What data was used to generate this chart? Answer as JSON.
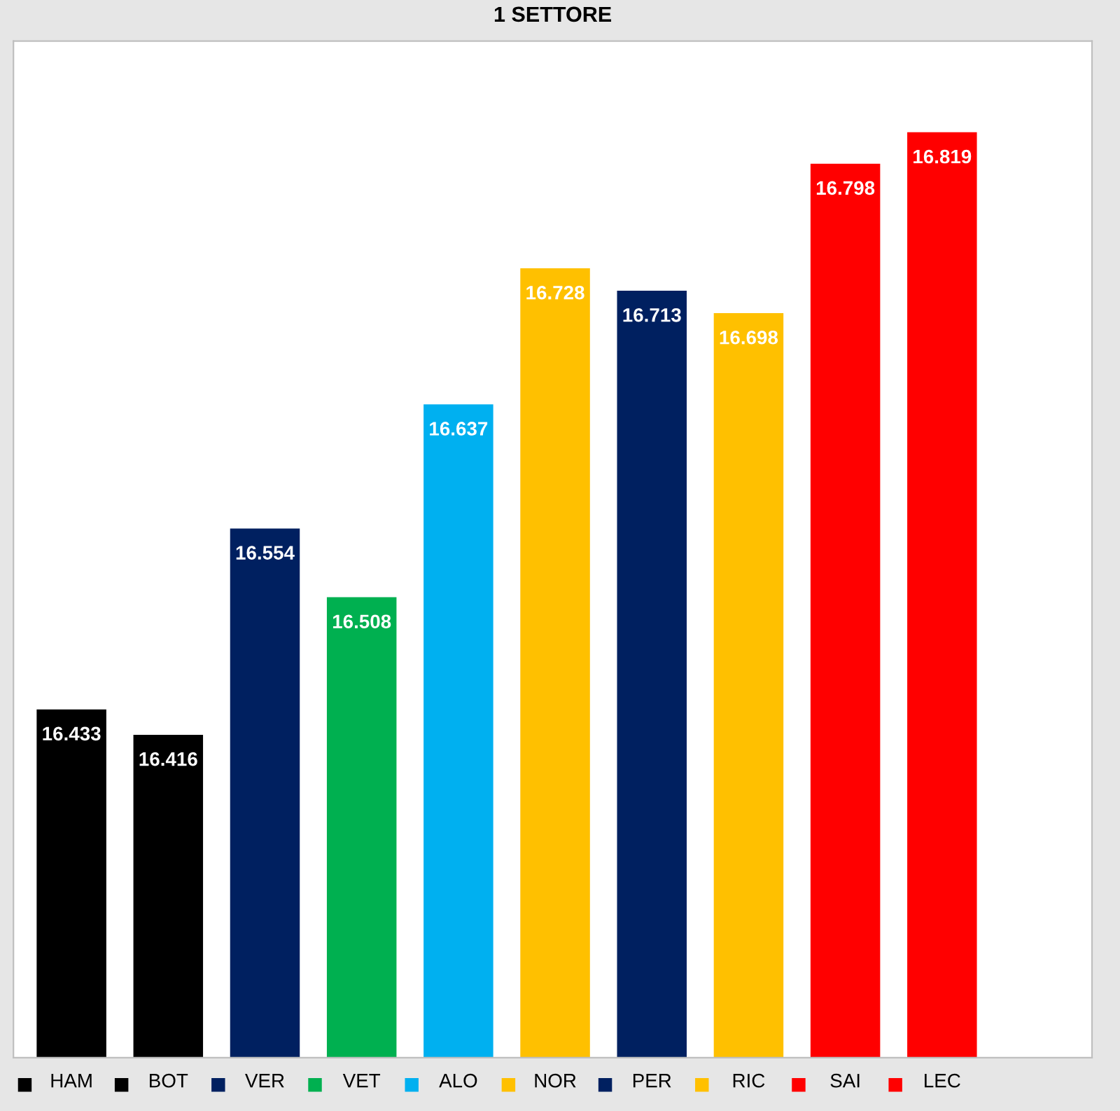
{
  "chart_data": {
    "type": "bar",
    "title": "1 SETTORE",
    "categories": [
      "HAM",
      "BOT",
      "VER",
      "VET",
      "ALO",
      "NOR",
      "PER",
      "RIC",
      "SAI",
      "LEC"
    ],
    "values": [
      16.433,
      16.416,
      16.554,
      16.508,
      16.637,
      16.728,
      16.713,
      16.698,
      16.798,
      16.819
    ],
    "colors": [
      "#000000",
      "#000000",
      "#002060",
      "#00b050",
      "#00b0f0",
      "#ffc000",
      "#002060",
      "#ffc000",
      "#ff0000",
      "#ff0000"
    ],
    "ylim": [
      16.2,
      16.88
    ],
    "data_labels": true,
    "grid": false
  }
}
